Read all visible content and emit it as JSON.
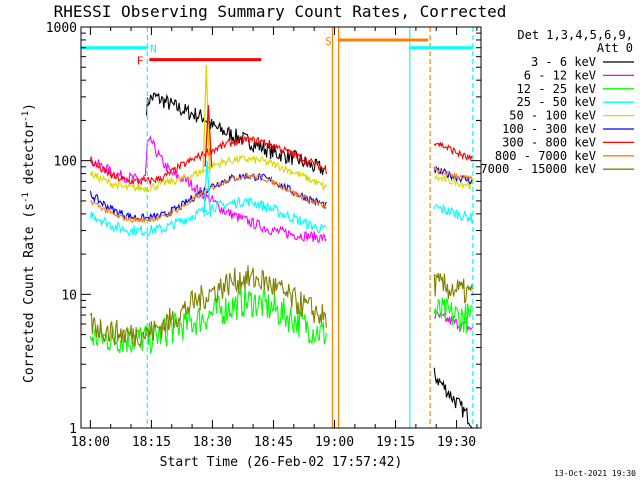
{
  "chart_data": {
    "type": "line",
    "title": "RHESSI Observing Summary Count Rates, Corrected",
    "xlabel": "Start Time (26-Feb-02 17:57:42)",
    "ylabel_main": "Corrected Count Rate (s",
    "ylabel_sup1": "-1",
    "ylabel_mid": " detector",
    "ylabel_sup2": "-1",
    "ylabel_end": ")",
    "x_unit": "minutes since 18:00",
    "x_range": [
      -2.3,
      96
    ],
    "y_scale": "log",
    "y_range": [
      1,
      1000
    ],
    "x_ticks": [
      {
        "v": 0,
        "label": "18:00"
      },
      {
        "v": 15,
        "label": "18:15"
      },
      {
        "v": 30,
        "label": "18:30"
      },
      {
        "v": 45,
        "label": "18:45"
      },
      {
        "v": 60,
        "label": "19:00"
      },
      {
        "v": 75,
        "label": "19:15"
      },
      {
        "v": 90,
        "label": "19:30"
      }
    ],
    "y_ticks": [
      {
        "v": 1,
        "label": "1"
      },
      {
        "v": 10,
        "label": "10"
      },
      {
        "v": 100,
        "label": "100"
      },
      {
        "v": 1000,
        "label": "1000"
      }
    ],
    "legend_title_1": "Det 1,3,4,5,6,9,",
    "legend_title_2": "Att 0",
    "series": [
      {
        "name": "3 - 6 keV",
        "color": "#000000",
        "noise": 0.06,
        "points": [
          [
            13.8,
            250
          ],
          [
            14.5,
            290
          ],
          [
            16,
            300
          ],
          [
            18,
            280
          ],
          [
            20,
            260
          ],
          [
            24,
            230
          ],
          [
            28,
            210
          ],
          [
            30,
            180
          ],
          [
            35,
            155
          ],
          [
            40,
            135
          ],
          [
            45,
            115
          ],
          [
            50,
            105
          ],
          [
            55,
            90
          ],
          [
            58,
            85
          ]
        ]
      },
      {
        "name": "6 - 12 keV",
        "color": "#ff00ff",
        "noise": 0.04,
        "points": [
          [
            0,
            100
          ],
          [
            3,
            90
          ],
          [
            6,
            80
          ],
          [
            9,
            75
          ],
          [
            12,
            72
          ],
          [
            13.5,
            75
          ],
          [
            14,
            130
          ],
          [
            15,
            140
          ],
          [
            16,
            120
          ],
          [
            18,
            95
          ],
          [
            20,
            80
          ],
          [
            24,
            70
          ],
          [
            26,
            62
          ],
          [
            28,
            55
          ],
          [
            30,
            50
          ],
          [
            33,
            42
          ],
          [
            36,
            38
          ],
          [
            40,
            34
          ],
          [
            45,
            30
          ],
          [
            50,
            28
          ],
          [
            55,
            27
          ],
          [
            58,
            26
          ]
        ]
      },
      {
        "name": "12 - 25 keV",
        "color": "#00ff00",
        "noise": 0.12,
        "points": [
          [
            0,
            4.8
          ],
          [
            5,
            4.7
          ],
          [
            10,
            4.6
          ],
          [
            15,
            4.7
          ],
          [
            20,
            5.5
          ],
          [
            25,
            6.2
          ],
          [
            30,
            7.2
          ],
          [
            35,
            8.2
          ],
          [
            38,
            8.8
          ],
          [
            40,
            8.8
          ],
          [
            45,
            7.8
          ],
          [
            50,
            6.5
          ],
          [
            55,
            5.4
          ],
          [
            58,
            5
          ]
        ]
      },
      {
        "name": "25 - 50 keV",
        "color": "#00ffff",
        "noise": 0.04,
        "points": [
          [
            0,
            40
          ],
          [
            3,
            36
          ],
          [
            6,
            32
          ],
          [
            10,
            30
          ],
          [
            14,
            30
          ],
          [
            18,
            31
          ],
          [
            22,
            35
          ],
          [
            26,
            40
          ],
          [
            30,
            45
          ],
          [
            35,
            48
          ],
          [
            38,
            50
          ],
          [
            41,
            48
          ],
          [
            45,
            43
          ],
          [
            50,
            37
          ],
          [
            55,
            32
          ],
          [
            58,
            30
          ]
        ]
      },
      {
        "name": "50 - 100 keV",
        "color": "#d8d800",
        "noise": 0.03,
        "points": [
          [
            0,
            80
          ],
          [
            4,
            70
          ],
          [
            8,
            63
          ],
          [
            12,
            62
          ],
          [
            15,
            63
          ],
          [
            18,
            68
          ],
          [
            22,
            72
          ],
          [
            25,
            78
          ],
          [
            28,
            85
          ],
          [
            30,
            92
          ],
          [
            34,
            100
          ],
          [
            38,
            103
          ],
          [
            42,
            100
          ],
          [
            46,
            92
          ],
          [
            50,
            82
          ],
          [
            55,
            70
          ],
          [
            58,
            62
          ]
        ]
      },
      {
        "name": "100 - 300 keV",
        "color": "#0000ff",
        "noise": 0.03,
        "points": [
          [
            0,
            56
          ],
          [
            3,
            48
          ],
          [
            6,
            42
          ],
          [
            10,
            38
          ],
          [
            14,
            37
          ],
          [
            18,
            39
          ],
          [
            22,
            45
          ],
          [
            26,
            55
          ],
          [
            30,
            65
          ],
          [
            34,
            73
          ],
          [
            38,
            77
          ],
          [
            42,
            75
          ],
          [
            46,
            68
          ],
          [
            50,
            58
          ],
          [
            55,
            50
          ],
          [
            58,
            46
          ]
        ]
      },
      {
        "name": "300 - 800 keV",
        "color": "#ff0000",
        "noise": 0.03,
        "points": [
          [
            0,
            100
          ],
          [
            3,
            85
          ],
          [
            6,
            75
          ],
          [
            10,
            70
          ],
          [
            14,
            70
          ],
          [
            18,
            75
          ],
          [
            22,
            90
          ],
          [
            26,
            105
          ],
          [
            30,
            120
          ],
          [
            34,
            135
          ],
          [
            38,
            143
          ],
          [
            42,
            140
          ],
          [
            46,
            127
          ],
          [
            50,
            110
          ],
          [
            55,
            95
          ],
          [
            58,
            85
          ]
        ]
      },
      {
        "name": "800 - 7000 keV",
        "color": "#ff8000",
        "noise": 0.02,
        "points": [
          [
            0,
            50
          ],
          [
            3,
            44
          ],
          [
            6,
            39
          ],
          [
            10,
            36
          ],
          [
            14,
            36
          ],
          [
            18,
            38
          ],
          [
            22,
            44
          ],
          [
            26,
            53
          ],
          [
            30,
            63
          ],
          [
            34,
            72
          ],
          [
            38,
            77
          ],
          [
            42,
            75
          ],
          [
            46,
            67
          ],
          [
            50,
            57
          ],
          [
            55,
            49
          ],
          [
            58,
            45
          ]
        ]
      },
      {
        "name": "7000 - 15000 keV",
        "color": "#808000",
        "noise": 0.1,
        "points": [
          [
            0,
            6
          ],
          [
            5,
            5.2
          ],
          [
            10,
            5
          ],
          [
            15,
            5.2
          ],
          [
            20,
            6.5
          ],
          [
            25,
            8.5
          ],
          [
            30,
            10.5
          ],
          [
            35,
            12.5
          ],
          [
            38,
            13.2
          ],
          [
            42,
            12.8
          ],
          [
            46,
            11
          ],
          [
            50,
            9
          ],
          [
            55,
            7.5
          ],
          [
            58,
            6.5
          ]
        ]
      }
    ],
    "later_segment": {
      "x_start": 84.5,
      "x_end": 94,
      "values": {
        "3 - 6 keV": [
          2.5,
          1.1
        ],
        "6 - 12 keV": [
          7,
          5.5
        ],
        "12 - 25 keV": [
          7.5,
          6.5
        ],
        "25 - 50 keV": [
          45,
          37
        ],
        "50 - 100 keV": [
          75,
          65
        ],
        "100 - 300 keV": [
          85,
          70
        ],
        "300 - 800 keV": [
          140,
          100
        ],
        "800 - 7000 keV": [
          85,
          72
        ],
        "7000 - 15000 keV": [
          12,
          10
        ]
      }
    },
    "spikes": [
      {
        "series": "50 - 100 keV",
        "x": 28.5,
        "peak": 520,
        "base": 80
      },
      {
        "series": "300 - 800 keV",
        "x": 29,
        "peak": 260,
        "base": 90
      },
      {
        "series": "25 - 50 keV",
        "x": 28.7,
        "peak": 100,
        "base": 38
      }
    ],
    "flags": [
      {
        "label": "N",
        "color": "#00ffff",
        "value": 700,
        "x_start": -2.3,
        "x_end": 14,
        "label_x": 15.5
      },
      {
        "label": "F",
        "color": "#ff0000",
        "value": 570,
        "x_start": 14.5,
        "x_end": 42,
        "label_x": 12.2
      },
      {
        "label": "S",
        "color": "#ff8000",
        "value": 800,
        "x_start": 61,
        "x_end": 83,
        "label_x": 58.5
      },
      {
        "label": "",
        "color": "#00ffff",
        "value": 700,
        "x_start": 78.5,
        "x_end": 94,
        "label_x": 0
      }
    ],
    "vlines": [
      {
        "x": 14,
        "color": "#00ffff",
        "dashed": true
      },
      {
        "x": 59.5,
        "color": "#ff8000",
        "dashed": false
      },
      {
        "x": 61,
        "color": "#ff8000",
        "dashed": false
      },
      {
        "x": 78.5,
        "color": "#00ffff",
        "dashed": false
      },
      {
        "x": 83.5,
        "color": "#ff8000",
        "dashed": true
      },
      {
        "x": 94,
        "color": "#00ffff",
        "dashed": true
      }
    ],
    "footer_date": "13-Oct-2021 19:30"
  }
}
